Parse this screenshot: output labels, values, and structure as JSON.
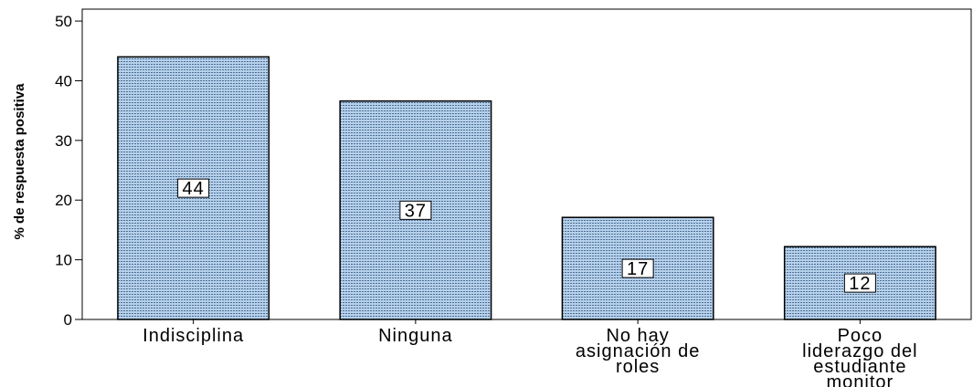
{
  "chart_data": {
    "type": "bar",
    "title": "",
    "xlabel": "",
    "ylabel": "% de respuesta positiva",
    "categories": [
      [
        "Indisciplina"
      ],
      [
        "Ninguna"
      ],
      [
        "No hay",
        "asignación de",
        "roles"
      ],
      [
        "Poco",
        "liderazgo del",
        "estudiante",
        "monitor"
      ]
    ],
    "values": [
      44,
      36.6,
      17.1,
      12.2
    ],
    "data_labels": [
      "44",
      "37",
      "17",
      "12"
    ],
    "ylim": [
      0,
      52
    ],
    "yticks": [
      0,
      10,
      20,
      30,
      40,
      50
    ],
    "grid": false,
    "legend": "none",
    "colors": {
      "bar_fill": "#b7d0ea",
      "bar_dots": "#4a6f97",
      "bar_stroke": "#000000",
      "axis": "#000000"
    }
  }
}
